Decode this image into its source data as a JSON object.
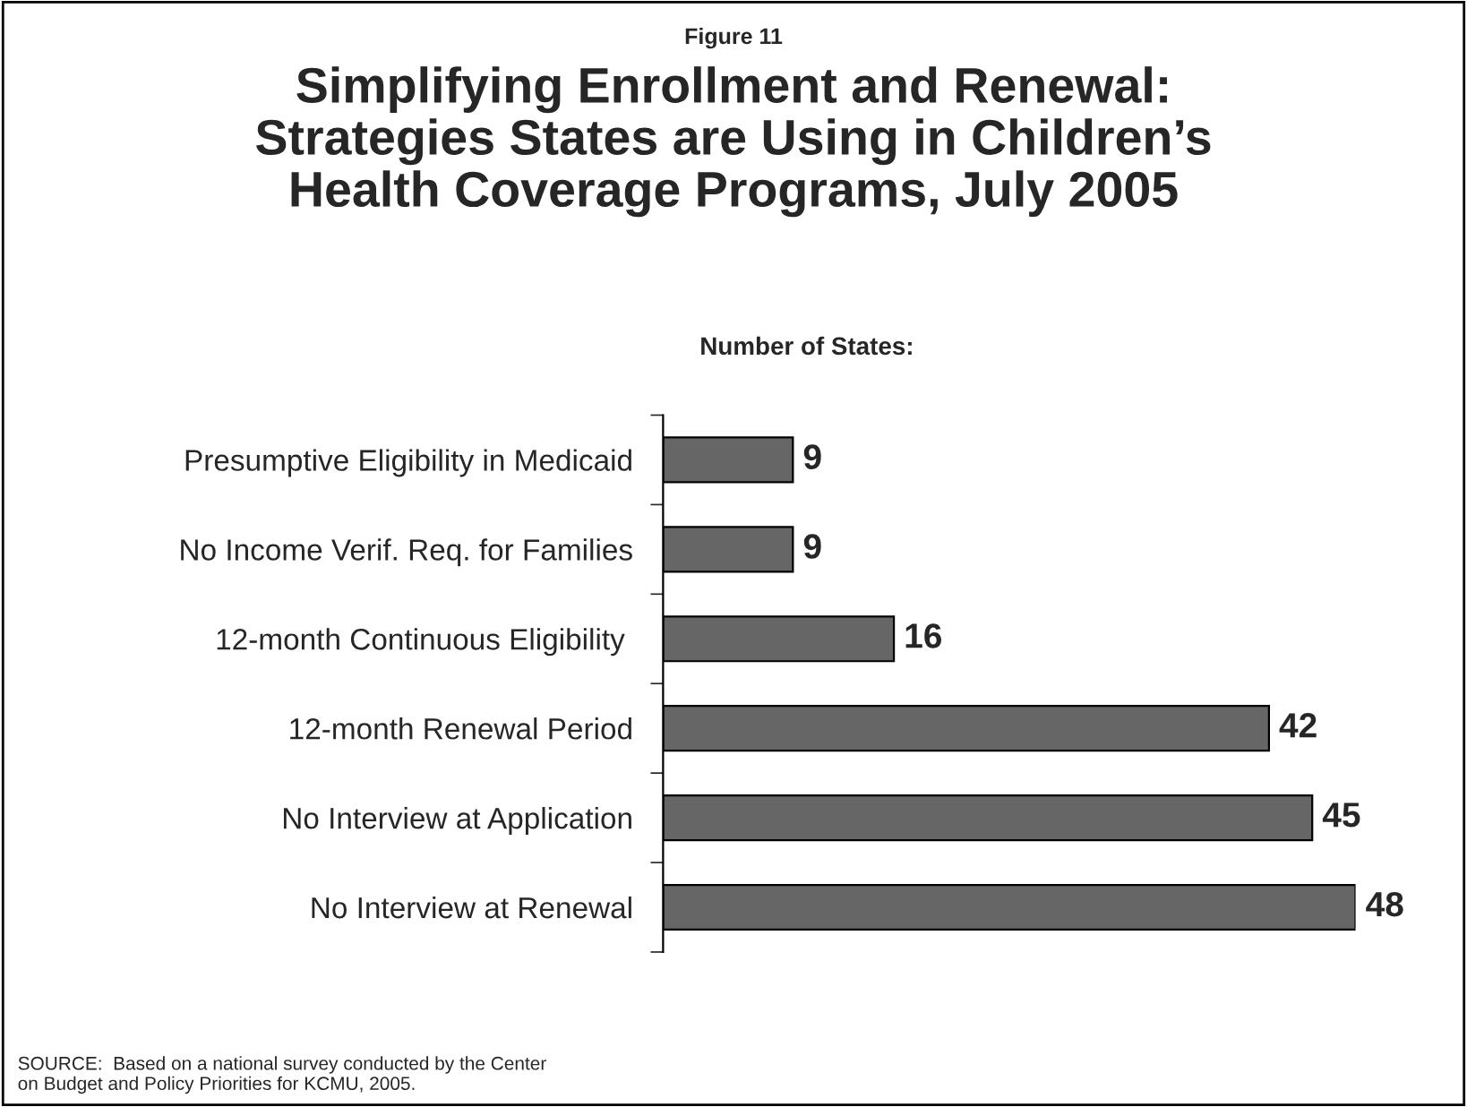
{
  "chart_data": {
    "type": "bar",
    "orientation": "horizontal",
    "title": "Simplifying Enrollment and Renewal:\nStrategies States are Using in Children’s\nHealth Coverage Programs, July 2005",
    "subtitle": "Number of States:",
    "annotations": [
      "Figure 11",
      "SOURCE:  Based on a national survey conducted by the Center\non Budget and Policy Priorities for KCMU, 2005."
    ],
    "categories": [
      "Presumptive Eligibility in Medicaid",
      "No Income Verif. Req. for Families",
      "12-month Continuous Eligibility ",
      "12-month Renewal Period",
      "No Interview at Application",
      "No Interview at Renewal"
    ],
    "values": [
      9,
      9,
      16,
      42,
      45,
      48
    ],
    "color": "#666666",
    "tick_labels": "y",
    "data_labels": true,
    "grid": false,
    "legend": false
  }
}
